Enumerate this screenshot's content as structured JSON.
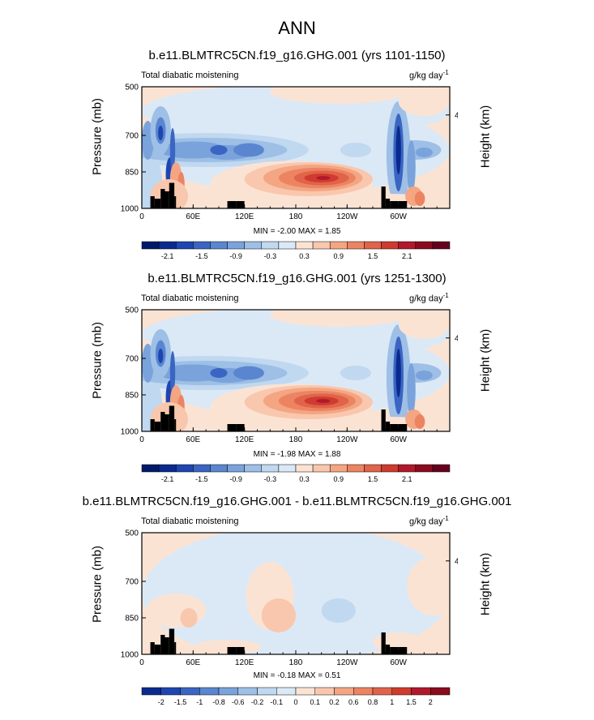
{
  "main_title": "ANN",
  "common": {
    "left_label": "Total diabatic moistening",
    "units_base": "g/kg day",
    "units_exp": "-1",
    "y_axis_label": "Pressure (mb)",
    "y2_axis_label": "Height (km)",
    "y_ticks": [
      "500",
      "700",
      "850",
      "1000"
    ],
    "y2_ticks": [
      "4"
    ],
    "x_ticks": [
      "0",
      "60E",
      "120E",
      "180",
      "120W",
      "60W"
    ]
  },
  "colors": {
    "positive_scale": [
      "#fbe3d4",
      "#f9c7ad",
      "#f4a582",
      "#ec8462",
      "#e0634a",
      "#cf3b2e",
      "#b2182b",
      "#8a0b1e",
      "#67001f"
    ],
    "negative_scale": [
      "#dbe9f6",
      "#c0d8f0",
      "#9ebfe6",
      "#7aa3dc",
      "#5a86d0",
      "#3a65c2",
      "#1f45b0",
      "#0a2a8f",
      "#001a6a"
    ],
    "terrain": "#000000"
  },
  "panels": [
    {
      "title": "b.e11.BLMTRC5CN.f19_g16.GHG.001 (yrs 1101-1150)",
      "min_max": "MIN = -2.00  MAX =  1.85",
      "colorbar_labels": [
        "-2.1",
        "-1.5",
        "-0.9",
        "-0.3",
        "0.3",
        "0.9",
        "1.5",
        "2.1"
      ]
    },
    {
      "title": "b.e11.BLMTRC5CN.f19_g16.GHG.001 (yrs 1251-1300)",
      "min_max": "MIN = -1.98  MAX =  1.88",
      "colorbar_labels": [
        "-2.1",
        "-1.5",
        "-0.9",
        "-0.3",
        "0.3",
        "0.9",
        "1.5",
        "2.1"
      ]
    },
    {
      "title": "b.e11.BLMTRC5CN.f19_g16.GHG.001 - b.e11.BLMTRC5CN.f19_g16.GHG.001",
      "min_max": "MIN = -0.18  MAX =  0.51",
      "colorbar_labels": [
        "-2",
        "-1.5",
        "-1",
        "-0.8",
        "-0.6",
        "-0.2",
        "-0.1",
        "0",
        "0.1",
        "0.2",
        "0.6",
        "0.8",
        "1",
        "1.5",
        "2"
      ]
    }
  ],
  "chart_data": [
    {
      "type": "heatmap",
      "title": "b.e11.BLMTRC5CN.f19_g16.GHG.001 (yrs 1101-1150)",
      "xlabel": "",
      "ylabel": "Pressure (mb)",
      "y2label": "Height (km)",
      "xlim": [
        0,
        360
      ],
      "ylim": [
        1000,
        500
      ],
      "min": -2.0,
      "max": 1.85,
      "extrema": [
        {
          "label": "max",
          "x": 195,
          "y": 880,
          "value": 1.85
        },
        {
          "label": "min",
          "x": 300,
          "y": 750,
          "value": -2.0
        }
      ]
    },
    {
      "type": "heatmap",
      "title": "b.e11.BLMTRC5CN.f19_g16.GHG.001 (yrs 1251-1300)",
      "xlabel": "",
      "ylabel": "Pressure (mb)",
      "y2label": "Height (km)",
      "xlim": [
        0,
        360
      ],
      "ylim": [
        1000,
        500
      ],
      "min": -1.98,
      "max": 1.88,
      "extrema": [
        {
          "label": "max",
          "x": 195,
          "y": 870,
          "value": 1.88
        },
        {
          "label": "min",
          "x": 300,
          "y": 750,
          "value": -1.98
        }
      ]
    },
    {
      "type": "heatmap",
      "title": "b.e11.BLMTRC5CN.f19_g16.GHG.001 - b.e11.BLMTRC5CN.f19_g16.GHG.001",
      "xlabel": "",
      "ylabel": "Pressure (mb)",
      "y2label": "Height (km)",
      "xlim": [
        0,
        360
      ],
      "ylim": [
        1000,
        500
      ],
      "min": -0.18,
      "max": 0.51,
      "extrema": [
        {
          "label": "max",
          "x": 150,
          "y": 850,
          "value": 0.51
        },
        {
          "label": "min",
          "x": 230,
          "y": 820,
          "value": -0.18
        }
      ]
    }
  ]
}
